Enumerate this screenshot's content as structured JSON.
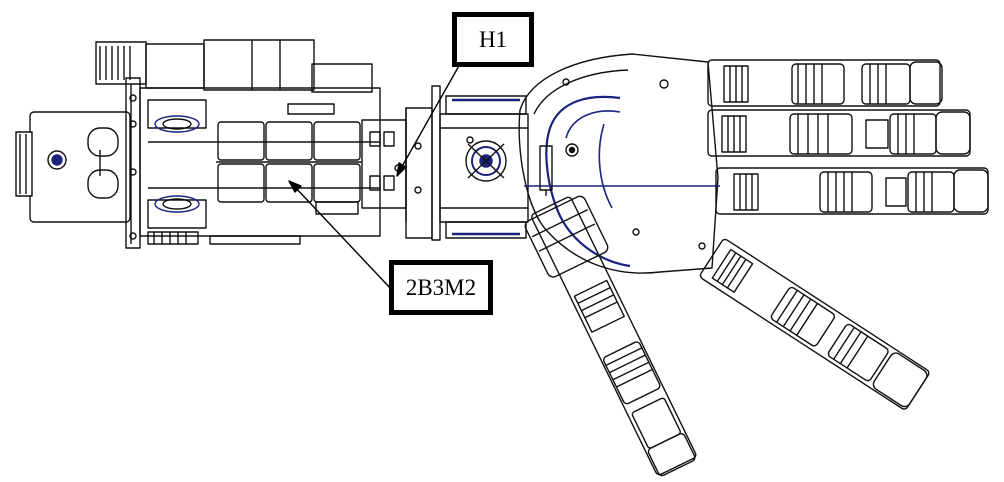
{
  "labels": {
    "h1": "H1",
    "part": "2B3M2"
  },
  "colors": {
    "ink": "#000000",
    "blue": "#1a237e",
    "background": "#ffffff"
  }
}
